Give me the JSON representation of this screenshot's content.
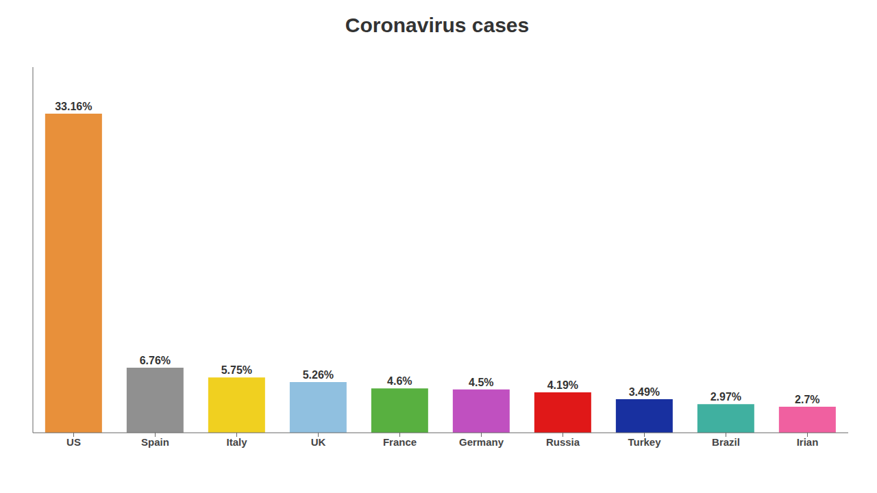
{
  "chart_data": {
    "type": "bar",
    "title": "Coronavirus cases",
    "categories": [
      "US",
      "Spain",
      "Italy",
      "UK",
      "France",
      "Germany",
      "Russia",
      "Turkey",
      "Brazil",
      "Irian"
    ],
    "values": [
      33.16,
      6.76,
      5.75,
      5.26,
      4.6,
      4.5,
      4.19,
      3.49,
      2.97,
      2.7
    ],
    "value_labels": [
      "33.16%",
      "6.76%",
      "5.75%",
      "5.26%",
      "4.6%",
      "4.5%",
      "4.19%",
      "3.49%",
      "2.97%",
      "2.7%"
    ],
    "colors": [
      "#E8903A",
      "#909090",
      "#F0D020",
      "#90C0E0",
      "#58B040",
      "#C050C0",
      "#E01818",
      "#1830A0",
      "#40B0A0",
      "#F060A0"
    ],
    "ylim": [
      0,
      38
    ],
    "data_labels": true,
    "tick_labels": "x",
    "grid": false
  }
}
